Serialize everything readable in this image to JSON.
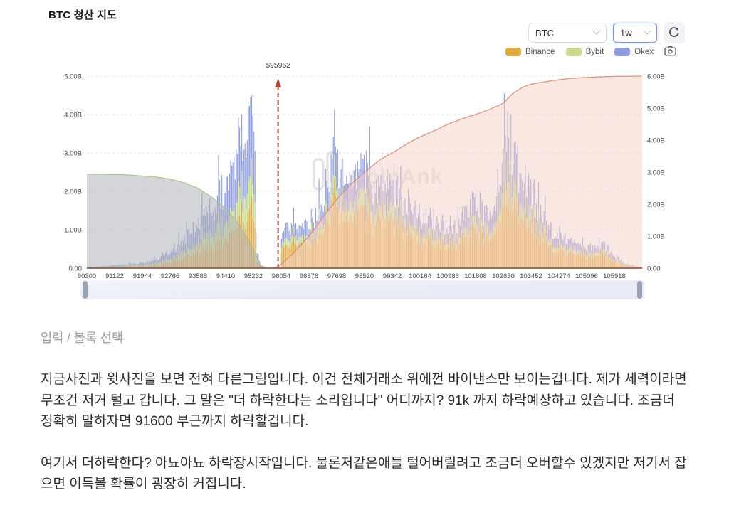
{
  "header": {
    "title": "BTC 청산 지도"
  },
  "controls": {
    "symbol": "BTC",
    "timeframe": "1w"
  },
  "legend": {
    "items": [
      {
        "label": "Binance",
        "color": "#E2A93B"
      },
      {
        "label": "Bybit",
        "color": "#C6DC8B"
      },
      {
        "label": "Okex",
        "color": "#8C9CE4"
      }
    ]
  },
  "watermark": {
    "text": "CoinAnk",
    "color": "#cfcfcf"
  },
  "chart_data": {
    "type": "bar",
    "title": "BTC 청산 지도",
    "legend_position": "top-right",
    "grid": true,
    "annotation": {
      "label": "$95962",
      "price": 95962,
      "color": "#C0452F"
    },
    "x_axis": {
      "min": 90300,
      "max": 106740,
      "tick_interval": 822,
      "ticks": [
        "90300",
        "91122",
        "91944",
        "92766",
        "93588",
        "94410",
        "95232",
        "96054",
        "96876",
        "97698",
        "98520",
        "99342",
        "100164",
        "100986",
        "101808",
        "102630",
        "103452",
        "104274",
        "105096",
        "105918"
      ]
    },
    "y_axis_left": {
      "min": 0,
      "max_billions": 5,
      "ticks": [
        "0.00",
        "1.00B",
        "2.00B",
        "3.00B",
        "4.00B",
        "5.00B"
      ]
    },
    "y_axis_right": {
      "min": 0,
      "max_billions": 6,
      "ticks": [
        "0.00",
        "1.00B",
        "2.00B",
        "3.00B",
        "4.00B",
        "5.00B",
        "6.00B"
      ]
    },
    "series": [
      {
        "name": "Binance",
        "color": "#E3A83C",
        "share_left": 0.36,
        "share_right": 0.55
      },
      {
        "name": "Bybit",
        "color": "#C3D97F",
        "share_left": 0.2,
        "share_right": 0.15
      },
      {
        "name": "Okex",
        "color": "#8A99E0",
        "share_left": 0.44,
        "share_right": 0.3
      }
    ],
    "bar_envelope_billions": [
      [
        90300,
        0.02
      ],
      [
        90700,
        0.04
      ],
      [
        91122,
        0.08
      ],
      [
        91500,
        0.11
      ],
      [
        91944,
        0.14
      ],
      [
        92300,
        0.22
      ],
      [
        92766,
        0.45
      ],
      [
        93100,
        0.7
      ],
      [
        93588,
        1.25
      ],
      [
        93900,
        1.6
      ],
      [
        94150,
        2.0
      ],
      [
        94410,
        2.35
      ],
      [
        94700,
        2.8
      ],
      [
        94950,
        3.3
      ],
      [
        95100,
        3.9
      ],
      [
        95200,
        4.5
      ],
      [
        95250,
        4.2
      ],
      [
        95290,
        1.2
      ],
      [
        95340,
        0.3
      ],
      [
        95430,
        0.12
      ],
      [
        95550,
        0.03
      ],
      [
        95650,
        0.0
      ],
      [
        96020,
        0.0
      ],
      [
        96054,
        0.85
      ],
      [
        96200,
        1.25
      ],
      [
        96350,
        1.05
      ],
      [
        96550,
        1.3
      ],
      [
        96876,
        1.15
      ],
      [
        97100,
        1.45
      ],
      [
        97300,
        2.1
      ],
      [
        97450,
        2.9
      ],
      [
        97650,
        3.25
      ],
      [
        97800,
        2.95
      ],
      [
        97950,
        2.45
      ],
      [
        98150,
        2.6
      ],
      [
        98350,
        2.85
      ],
      [
        98520,
        2.85
      ],
      [
        98700,
        2.55
      ],
      [
        98900,
        2.35
      ],
      [
        99100,
        2.45
      ],
      [
        99342,
        2.25
      ],
      [
        99600,
        2.05
      ],
      [
        99900,
        1.85
      ],
      [
        100164,
        1.55
      ],
      [
        100450,
        1.45
      ],
      [
        100700,
        1.3
      ],
      [
        100986,
        1.35
      ],
      [
        101300,
        1.25
      ],
      [
        101600,
        1.8
      ],
      [
        101808,
        2.0
      ],
      [
        102000,
        1.65
      ],
      [
        102250,
        1.4
      ],
      [
        102500,
        2.5
      ],
      [
        102700,
        3.6
      ],
      [
        102850,
        3.75
      ],
      [
        103000,
        2.95
      ],
      [
        103200,
        2.55
      ],
      [
        103452,
        2.15
      ],
      [
        103700,
        1.55
      ],
      [
        104000,
        1.15
      ],
      [
        104274,
        0.9
      ],
      [
        104600,
        0.75
      ],
      [
        104900,
        0.65
      ],
      [
        105096,
        0.6
      ],
      [
        105400,
        0.55
      ],
      [
        105600,
        0.68
      ],
      [
        105918,
        0.35
      ],
      [
        106200,
        0.15
      ],
      [
        106500,
        0.06
      ],
      [
        106740,
        0.02
      ]
    ],
    "cumulative_short": {
      "axis": "left",
      "fill": "#aeb3b8",
      "line": "#a4c47e",
      "points_billions": [
        [
          90300,
          2.45
        ],
        [
          91500,
          2.43
        ],
        [
          92300,
          2.38
        ],
        [
          92766,
          2.32
        ],
        [
          93200,
          2.22
        ],
        [
          93588,
          2.08
        ],
        [
          94000,
          1.85
        ],
        [
          94410,
          1.55
        ],
        [
          94800,
          1.15
        ],
        [
          95100,
          0.72
        ],
        [
          95300,
          0.35
        ],
        [
          95450,
          0.05
        ],
        [
          95550,
          0.0
        ]
      ]
    },
    "cumulative_long": {
      "axis": "right",
      "fill": "#f3cfc5",
      "line": "#e08a6f",
      "points_billions": [
        [
          95850,
          0.0
        ],
        [
          96054,
          0.12
        ],
        [
          96400,
          0.45
        ],
        [
          96876,
          1.0
        ],
        [
          97300,
          1.6
        ],
        [
          97698,
          2.15
        ],
        [
          98100,
          2.6
        ],
        [
          98520,
          3.0
        ],
        [
          99000,
          3.4
        ],
        [
          99342,
          3.6
        ],
        [
          99800,
          3.9
        ],
        [
          100164,
          4.1
        ],
        [
          100700,
          4.35
        ],
        [
          100986,
          4.5
        ],
        [
          101500,
          4.7
        ],
        [
          101808,
          4.8
        ],
        [
          102200,
          4.95
        ],
        [
          102630,
          5.15
        ],
        [
          102900,
          5.45
        ],
        [
          103200,
          5.65
        ],
        [
          103452,
          5.75
        ],
        [
          104000,
          5.85
        ],
        [
          104600,
          5.93
        ],
        [
          105096,
          5.96
        ],
        [
          105918,
          5.99
        ],
        [
          106740,
          6.0
        ]
      ]
    }
  },
  "editor": {
    "placeholder": "입력 / 블록 선택"
  },
  "paragraphs": [
    "지금사진과 윗사진을 보면 전혀 다른그림입니다. 이건 전체거래소 위에껀 바이낸스만 보이는겁니다. 제가 세력이라면 무조건 저거 털고 갑니다. 그 말은 \"더 하락한다는 소리입니다\" 어디까지? 91k 까지 하락예상하고 있습니다. 조금더 정확히 말하자면 91600 부근까지 하락할겁니다.",
    "여기서 더하락한다? 아뇨아뇨 하락장시작입니다. 물론저같은애들 털어버릴려고 조금더 오버할수 있겠지만 저기서 잡으면 이득볼 확률이 굉장히 커집니다."
  ]
}
